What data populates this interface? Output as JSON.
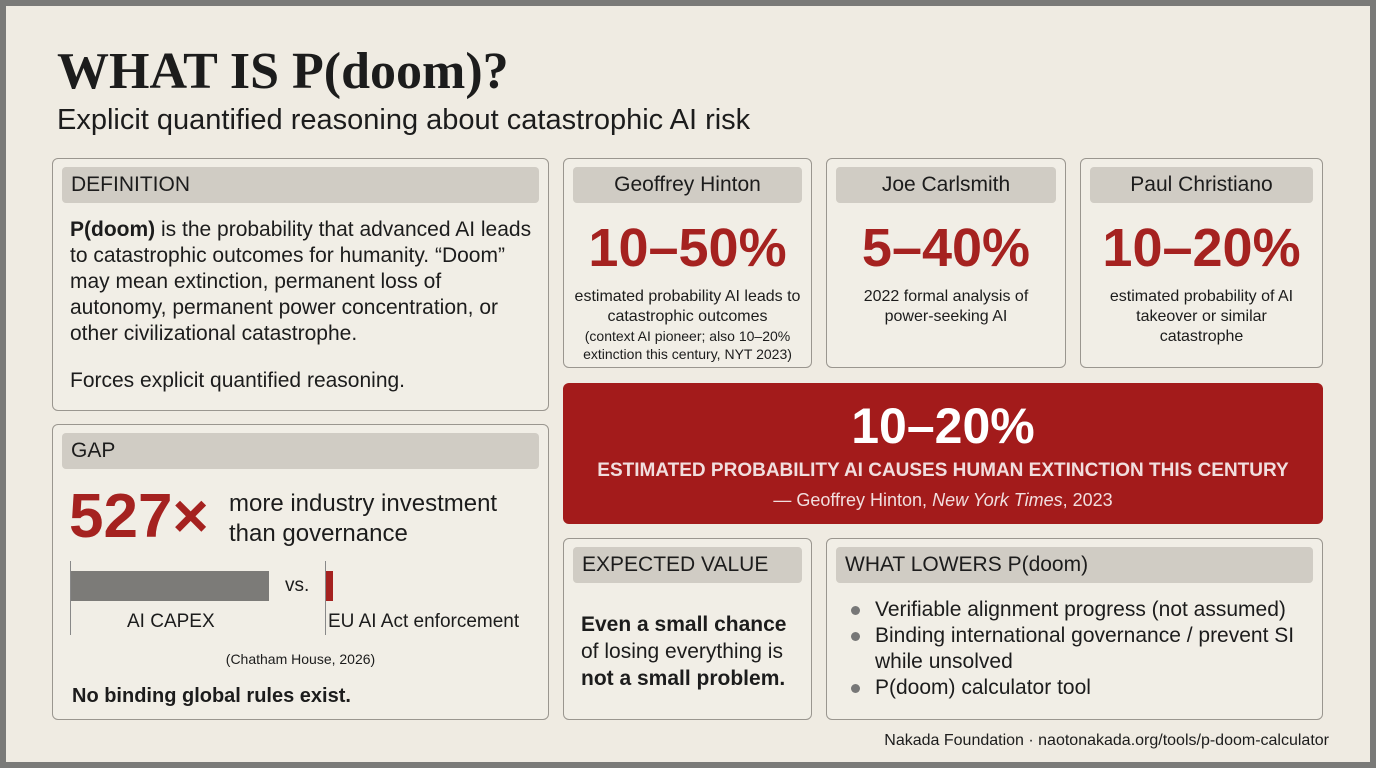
{
  "header": {
    "title": "WHAT IS P(doom)?",
    "subtitle": "Explicit quantified reasoning about catastrophic AI risk"
  },
  "definition": {
    "heading": "DEFINITION",
    "term": "P(doom)",
    "text": "is the probability that advanced AI leads to catastrophic outcomes for humanity. “Doom” may mean extinction, permanent loss of autonomy, permanent power concentration, or other civilizational catastrophe.",
    "note": "Forces explicit quantified reasoning."
  },
  "gap": {
    "heading": "GAP",
    "multiplier": "527×",
    "text": "more industry investment than governance",
    "left_label": "AI CAPEX",
    "versus": "vs.",
    "right_label": "EU AI Act enforcement",
    "source": "(Chatham House, 2026)",
    "conclusion": "No binding global rules exist."
  },
  "estimates": [
    {
      "name": "Geoffrey Hinton",
      "range": "10–50%",
      "text": "estimated probability AI leads to catastrophic outcomes",
      "context": "(context AI pioneer; also 10–20% extinction this century, NYT 2023)"
    },
    {
      "name": "Joe Carlsmith",
      "range": "5–40%",
      "text": "2022 formal analysis of power-seeking AI"
    },
    {
      "name": "Paul Christiano",
      "range": "10–20%",
      "text": "estimated probability of AI takeover or similar catastrophe"
    }
  ],
  "banner": {
    "range": "10–20%",
    "statement": "ESTIMATED PROBABILITY AI CAUSES HUMAN EXTINCTION THIS CENTURY",
    "source_author": "— Geoffrey Hinton,",
    "source_publication": "New York Times",
    "source_year": ", 2023"
  },
  "expected_value": {
    "heading": "EXPECTED VALUE",
    "lead": "Even a small chance",
    "middle": "of losing everything is",
    "end": "not a small problem."
  },
  "lowers": {
    "heading": "WHAT LOWERS P(doom)",
    "items": [
      "Verifiable alignment progress (not assumed)",
      "Binding international governance / prevent SI while unsolved",
      "P(doom) calculator tool"
    ]
  },
  "footer": "Nakada Foundation · naotonakada.org/tools/p-doom-calculator"
}
